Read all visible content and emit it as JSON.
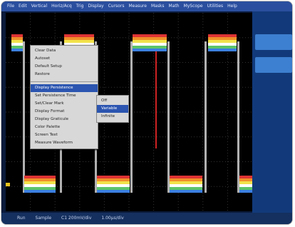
{
  "menu_bar": [
    "File",
    "Edit",
    "Vertical",
    "Horiz/Acq",
    "Trig",
    "Display",
    "Cursors",
    "Measure",
    "Masks",
    "Math",
    "MyScope",
    "Utilities",
    "Help"
  ],
  "context_menu": {
    "items": [
      "Clear Data",
      "Autoset",
      "Default Setup",
      "Restore",
      "Display Persistence",
      "Set Persistence Time",
      "Set/Clear Mark",
      "Display Format",
      "Display Graticule",
      "Color Palette",
      "Screen Text",
      "Measure  Waveform"
    ],
    "separator_after": 3,
    "highlighted": 4
  },
  "submenu": {
    "items": [
      "Off",
      "Variable",
      "Infinite"
    ],
    "highlighted": 1
  },
  "status": [
    "Run",
    "Sample",
    "C1 200mV/div",
    "1.00µs/div"
  ]
}
